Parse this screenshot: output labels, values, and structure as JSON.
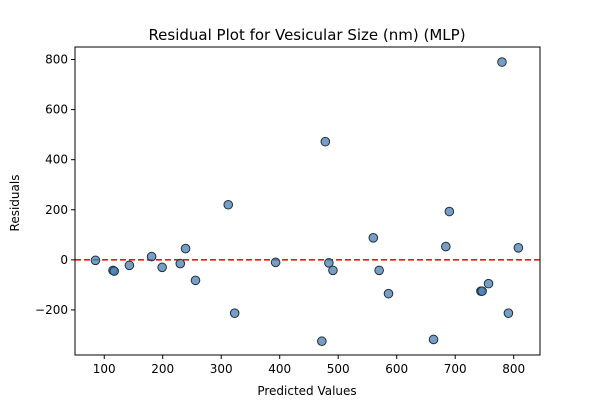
{
  "chart_data": {
    "type": "scatter",
    "title": "Residual Plot for Vesicular  Size (nm) (MLP)",
    "xlabel": "Predicted Values",
    "ylabel": "Residuals",
    "xlim": [
      50,
      845
    ],
    "ylim": [
      -380,
      850
    ],
    "x_ticks": [
      100,
      200,
      300,
      400,
      500,
      600,
      700,
      800
    ],
    "y_ticks": [
      -200,
      0,
      200,
      400,
      600,
      800
    ],
    "x_tick_labels": [
      "100",
      "200",
      "300",
      "400",
      "500",
      "600",
      "700",
      "800"
    ],
    "y_tick_labels": [
      "−200",
      "0",
      "200",
      "400",
      "600",
      "800"
    ],
    "grid": false,
    "legend": "none",
    "reference_line": {
      "y": 0,
      "style": "dashed",
      "color": "#e8190f"
    },
    "marker_color": "#4a7fb0",
    "marker_edge_color": "#1f2f3f",
    "points": [
      {
        "x": 85,
        "y": -2
      },
      {
        "x": 115,
        "y": -42
      },
      {
        "x": 117,
        "y": -45
      },
      {
        "x": 143,
        "y": -22
      },
      {
        "x": 181,
        "y": 13
      },
      {
        "x": 199,
        "y": -30
      },
      {
        "x": 230,
        "y": -15
      },
      {
        "x": 239,
        "y": 45
      },
      {
        "x": 256,
        "y": -82
      },
      {
        "x": 312,
        "y": 220
      },
      {
        "x": 323,
        "y": -213
      },
      {
        "x": 393,
        "y": -10
      },
      {
        "x": 472,
        "y": -325
      },
      {
        "x": 478,
        "y": 472
      },
      {
        "x": 484,
        "y": -12
      },
      {
        "x": 491,
        "y": -42
      },
      {
        "x": 560,
        "y": 88
      },
      {
        "x": 570,
        "y": -42
      },
      {
        "x": 586,
        "y": -135
      },
      {
        "x": 663,
        "y": -318
      },
      {
        "x": 684,
        "y": 53
      },
      {
        "x": 690,
        "y": 193
      },
      {
        "x": 744,
        "y": -125
      },
      {
        "x": 746,
        "y": -125
      },
      {
        "x": 757,
        "y": -95
      },
      {
        "x": 780,
        "y": 790
      },
      {
        "x": 791,
        "y": -213
      },
      {
        "x": 808,
        "y": 48
      }
    ]
  }
}
